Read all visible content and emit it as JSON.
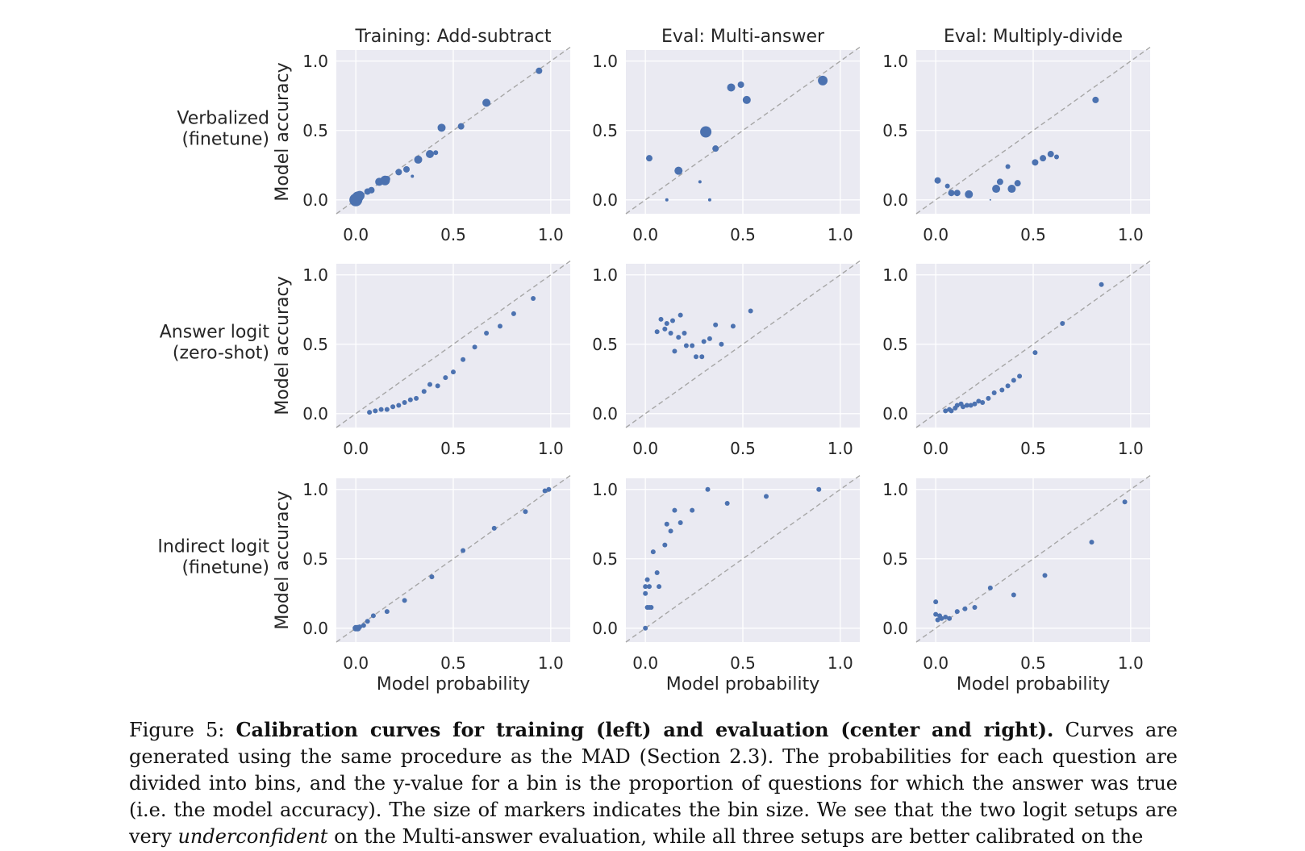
{
  "figure": {
    "column_titles": [
      "Training: Add-subtract",
      "Eval: Multi-answer",
      "Eval: Multiply-divide"
    ],
    "row_labels": [
      [
        "Verbalized",
        "(finetune)"
      ],
      [
        "Answer logit",
        "(zero-shot)"
      ],
      [
        "Indirect logit",
        "(finetune)"
      ]
    ],
    "ylabel": "Model accuracy",
    "xlabel": "Model probability",
    "ticks": [
      "0.0",
      "0.5",
      "1.0"
    ]
  },
  "chart_data": [
    {
      "type": "scatter",
      "title": "Training: Add-subtract",
      "row": "Verbalized (finetune)",
      "xlabel": "",
      "ylabel": "Model accuracy",
      "xlim": [
        -0.1,
        1.1
      ],
      "ylim": [
        -0.1,
        1.08
      ],
      "diagonal": true,
      "grid": true,
      "points": [
        [
          0.0,
          0.0,
          8
        ],
        [
          0.01,
          0.02,
          7
        ],
        [
          0.02,
          0.03,
          6
        ],
        [
          0.06,
          0.06,
          4
        ],
        [
          0.08,
          0.07,
          4
        ],
        [
          0.12,
          0.13,
          5
        ],
        [
          0.15,
          0.14,
          6
        ],
        [
          0.16,
          0.15,
          4
        ],
        [
          0.22,
          0.2,
          4
        ],
        [
          0.26,
          0.22,
          4
        ],
        [
          0.29,
          0.17,
          2
        ],
        [
          0.32,
          0.29,
          5
        ],
        [
          0.38,
          0.33,
          5
        ],
        [
          0.41,
          0.34,
          3
        ],
        [
          0.44,
          0.52,
          5
        ],
        [
          0.54,
          0.53,
          4
        ],
        [
          0.67,
          0.7,
          5
        ],
        [
          0.94,
          0.93,
          4
        ]
      ]
    },
    {
      "type": "scatter",
      "title": "Eval: Multi-answer",
      "row": "Verbalized (finetune)",
      "xlabel": "",
      "ylabel": "",
      "xlim": [
        -0.1,
        1.1
      ],
      "ylim": [
        -0.1,
        1.08
      ],
      "diagonal": true,
      "grid": true,
      "points": [
        [
          0.02,
          0.3,
          4
        ],
        [
          0.11,
          0.0,
          2
        ],
        [
          0.17,
          0.21,
          5
        ],
        [
          0.28,
          0.13,
          2
        ],
        [
          0.31,
          0.49,
          7
        ],
        [
          0.33,
          0.0,
          2
        ],
        [
          0.36,
          0.37,
          4
        ],
        [
          0.44,
          0.81,
          5
        ],
        [
          0.49,
          0.83,
          4
        ],
        [
          0.52,
          0.72,
          5
        ],
        [
          0.91,
          0.86,
          6
        ]
      ]
    },
    {
      "type": "scatter",
      "title": "Eval: Multiply-divide",
      "row": "Verbalized (finetune)",
      "xlabel": "",
      "ylabel": "",
      "xlim": [
        -0.1,
        1.1
      ],
      "ylim": [
        -0.1,
        1.08
      ],
      "diagonal": true,
      "grid": true,
      "points": [
        [
          0.01,
          0.14,
          4
        ],
        [
          0.06,
          0.1,
          3
        ],
        [
          0.08,
          0.05,
          4
        ],
        [
          0.11,
          0.05,
          4
        ],
        [
          0.17,
          0.04,
          5
        ],
        [
          0.28,
          0.0,
          1
        ],
        [
          0.31,
          0.08,
          5
        ],
        [
          0.33,
          0.13,
          4
        ],
        [
          0.37,
          0.24,
          3
        ],
        [
          0.39,
          0.08,
          5
        ],
        [
          0.42,
          0.12,
          4
        ],
        [
          0.51,
          0.27,
          4
        ],
        [
          0.55,
          0.3,
          4
        ],
        [
          0.59,
          0.33,
          4
        ],
        [
          0.62,
          0.31,
          3
        ],
        [
          0.82,
          0.72,
          4
        ]
      ]
    },
    {
      "type": "scatter",
      "title": "",
      "row": "Answer logit (zero-shot)",
      "xlabel": "",
      "ylabel": "Model accuracy",
      "xlim": [
        -0.1,
        1.1
      ],
      "ylim": [
        -0.1,
        1.08
      ],
      "diagonal": true,
      "grid": true,
      "points": [
        [
          0.07,
          0.01,
          3
        ],
        [
          0.1,
          0.02,
          3
        ],
        [
          0.13,
          0.03,
          3
        ],
        [
          0.16,
          0.03,
          3
        ],
        [
          0.19,
          0.05,
          3
        ],
        [
          0.22,
          0.06,
          3
        ],
        [
          0.25,
          0.08,
          3
        ],
        [
          0.28,
          0.1,
          3
        ],
        [
          0.31,
          0.11,
          3
        ],
        [
          0.35,
          0.16,
          3
        ],
        [
          0.38,
          0.21,
          3
        ],
        [
          0.42,
          0.2,
          3
        ],
        [
          0.46,
          0.26,
          3
        ],
        [
          0.5,
          0.3,
          3
        ],
        [
          0.55,
          0.39,
          3
        ],
        [
          0.61,
          0.48,
          3
        ],
        [
          0.67,
          0.58,
          3
        ],
        [
          0.74,
          0.63,
          3
        ],
        [
          0.81,
          0.72,
          3
        ],
        [
          0.91,
          0.83,
          3
        ]
      ]
    },
    {
      "type": "scatter",
      "title": "",
      "row": "Answer logit (zero-shot)",
      "xlabel": "",
      "ylabel": "",
      "xlim": [
        -0.1,
        1.1
      ],
      "ylim": [
        -0.1,
        1.08
      ],
      "diagonal": true,
      "grid": true,
      "points": [
        [
          0.06,
          0.59,
          3
        ],
        [
          0.08,
          0.68,
          3
        ],
        [
          0.1,
          0.61,
          3
        ],
        [
          0.11,
          0.65,
          3
        ],
        [
          0.13,
          0.58,
          3
        ],
        [
          0.14,
          0.67,
          3
        ],
        [
          0.15,
          0.45,
          3
        ],
        [
          0.17,
          0.55,
          3
        ],
        [
          0.18,
          0.71,
          3
        ],
        [
          0.2,
          0.58,
          3
        ],
        [
          0.21,
          0.49,
          3
        ],
        [
          0.24,
          0.49,
          3
        ],
        [
          0.26,
          0.41,
          3
        ],
        [
          0.29,
          0.41,
          3
        ],
        [
          0.3,
          0.52,
          3
        ],
        [
          0.33,
          0.54,
          3
        ],
        [
          0.36,
          0.64,
          3
        ],
        [
          0.39,
          0.5,
          3
        ],
        [
          0.45,
          0.63,
          3
        ],
        [
          0.54,
          0.74,
          3
        ]
      ]
    },
    {
      "type": "scatter",
      "title": "",
      "row": "Answer logit (zero-shot)",
      "xlabel": "",
      "ylabel": "",
      "xlim": [
        -0.1,
        1.1
      ],
      "ylim": [
        -0.1,
        1.08
      ],
      "diagonal": true,
      "grid": true,
      "points": [
        [
          0.05,
          0.02,
          3
        ],
        [
          0.07,
          0.03,
          3
        ],
        [
          0.08,
          0.02,
          3
        ],
        [
          0.1,
          0.04,
          3
        ],
        [
          0.11,
          0.06,
          3
        ],
        [
          0.13,
          0.07,
          3
        ],
        [
          0.14,
          0.05,
          3
        ],
        [
          0.16,
          0.06,
          3
        ],
        [
          0.18,
          0.06,
          3
        ],
        [
          0.2,
          0.07,
          3
        ],
        [
          0.22,
          0.09,
          3
        ],
        [
          0.24,
          0.08,
          3
        ],
        [
          0.27,
          0.11,
          3
        ],
        [
          0.3,
          0.15,
          3
        ],
        [
          0.34,
          0.17,
          3
        ],
        [
          0.37,
          0.2,
          3
        ],
        [
          0.4,
          0.24,
          3
        ],
        [
          0.43,
          0.27,
          3
        ],
        [
          0.51,
          0.44,
          3
        ],
        [
          0.65,
          0.65,
          3
        ],
        [
          0.85,
          0.93,
          3
        ]
      ]
    },
    {
      "type": "scatter",
      "title": "",
      "row": "Indirect logit (finetune)",
      "xlabel": "Model probability",
      "ylabel": "Model accuracy",
      "xlim": [
        -0.1,
        1.1
      ],
      "ylim": [
        -0.1,
        1.08
      ],
      "diagonal": true,
      "grid": true,
      "points": [
        [
          0.0,
          0.0,
          4
        ],
        [
          0.01,
          0.0,
          4
        ],
        [
          0.02,
          0.01,
          3
        ],
        [
          0.04,
          0.02,
          3
        ],
        [
          0.06,
          0.05,
          3
        ],
        [
          0.09,
          0.09,
          3
        ],
        [
          0.16,
          0.12,
          3
        ],
        [
          0.25,
          0.2,
          3
        ],
        [
          0.39,
          0.37,
          3
        ],
        [
          0.55,
          0.56,
          3
        ],
        [
          0.71,
          0.72,
          3
        ],
        [
          0.87,
          0.84,
          3
        ],
        [
          0.97,
          0.99,
          3
        ],
        [
          0.99,
          1.0,
          3
        ]
      ]
    },
    {
      "type": "scatter",
      "title": "",
      "row": "Indirect logit (finetune)",
      "xlabel": "Model probability",
      "ylabel": "",
      "xlim": [
        -0.1,
        1.1
      ],
      "ylim": [
        -0.1,
        1.08
      ],
      "diagonal": true,
      "grid": true,
      "points": [
        [
          0.0,
          0.0,
          3
        ],
        [
          0.0,
          0.25,
          3
        ],
        [
          0.0,
          0.3,
          3
        ],
        [
          0.01,
          0.35,
          3
        ],
        [
          0.01,
          0.15,
          3
        ],
        [
          0.02,
          0.15,
          3
        ],
        [
          0.02,
          0.3,
          3
        ],
        [
          0.03,
          0.15,
          3
        ],
        [
          0.04,
          0.55,
          3
        ],
        [
          0.06,
          0.4,
          3
        ],
        [
          0.07,
          0.3,
          3
        ],
        [
          0.1,
          0.6,
          3
        ],
        [
          0.11,
          0.75,
          3
        ],
        [
          0.13,
          0.7,
          3
        ],
        [
          0.15,
          0.85,
          3
        ],
        [
          0.18,
          0.76,
          3
        ],
        [
          0.24,
          0.85,
          3
        ],
        [
          0.32,
          1.0,
          3
        ],
        [
          0.42,
          0.9,
          3
        ],
        [
          0.62,
          0.95,
          3
        ],
        [
          0.89,
          1.0,
          3
        ]
      ]
    },
    {
      "type": "scatter",
      "title": "",
      "row": "Indirect logit (finetune)",
      "xlabel": "Model probability",
      "ylabel": "",
      "xlim": [
        -0.1,
        1.1
      ],
      "ylim": [
        -0.1,
        1.08
      ],
      "diagonal": true,
      "grid": true,
      "points": [
        [
          0.0,
          0.19,
          3
        ],
        [
          0.0,
          0.1,
          3
        ],
        [
          0.01,
          0.06,
          3
        ],
        [
          0.02,
          0.09,
          3
        ],
        [
          0.03,
          0.07,
          3
        ],
        [
          0.05,
          0.08,
          3
        ],
        [
          0.07,
          0.07,
          3
        ],
        [
          0.11,
          0.12,
          3
        ],
        [
          0.15,
          0.14,
          3
        ],
        [
          0.2,
          0.15,
          3
        ],
        [
          0.28,
          0.29,
          3
        ],
        [
          0.4,
          0.24,
          3
        ],
        [
          0.56,
          0.38,
          3
        ],
        [
          0.8,
          0.62,
          3
        ],
        [
          0.97,
          0.91,
          3
        ]
      ]
    }
  ],
  "colors": {
    "panel_bg": "#eaeaf2",
    "grid": "#ffffff",
    "point": "#4c72b0",
    "diagonal": "#a6a6a6"
  },
  "caption": {
    "label": "Figure 5:",
    "bold": "Calibration curves for training (left) and evaluation (center and right).",
    "text1": "Curves are generated using the same procedure as the MAD (Section 2.3). The probabilities for each question are divided into bins, and the y-value for a bin is the proportion of questions for which the answer was true (i.e. the model accuracy). The size of markers indicates the bin size. We see that the two logit setups are very",
    "italic": "underconfident",
    "text2": "on the Multi-answer evaluation, while all three setups are better calibrated on the"
  }
}
